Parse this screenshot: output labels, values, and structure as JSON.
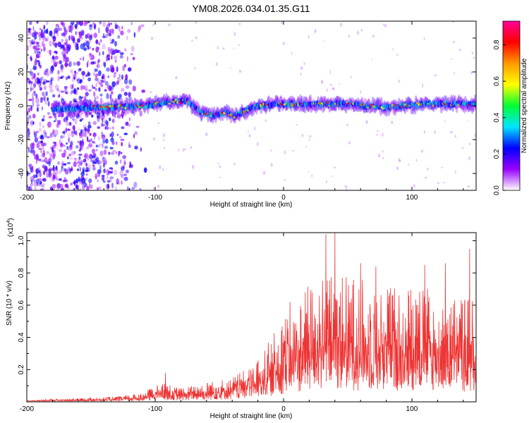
{
  "title": "YM08.2026.034.01.35.G11",
  "spectrogram": {
    "type": "heatmap",
    "xlabel": "Height of straight line (km)",
    "ylabel": "Frequency (Hz)",
    "xlim": [
      -200,
      150
    ],
    "ylim": [
      -50,
      50
    ],
    "xticks": [
      -200,
      -100,
      0,
      100
    ],
    "yticks": [
      -40,
      -20,
      0,
      20,
      40
    ],
    "colorbar": {
      "label": "Normalized spectral amplitude",
      "range": [
        0,
        0.93
      ],
      "ticks": [
        0.0,
        0.2,
        0.4,
        0.6,
        0.8
      ],
      "colors": [
        "#ffffff",
        "#9900ff",
        "#0000ff",
        "#00e5ff",
        "#00ff33",
        "#ffff00",
        "#ff9900",
        "#ff0000",
        "#ff0099"
      ]
    },
    "ridge": [
      {
        "x": -180,
        "y": -2
      },
      {
        "x": -140,
        "y": -1
      },
      {
        "x": -110,
        "y": 0
      },
      {
        "x": -90,
        "y": 2
      },
      {
        "x": -75,
        "y": 3
      },
      {
        "x": -65,
        "y": -4
      },
      {
        "x": -55,
        "y": -6
      },
      {
        "x": -45,
        "y": -4
      },
      {
        "x": -38,
        "y": -6
      },
      {
        "x": -30,
        "y": -3
      },
      {
        "x": -20,
        "y": 0
      },
      {
        "x": -5,
        "y": 1
      },
      {
        "x": 20,
        "y": 1
      },
      {
        "x": 50,
        "y": 1
      },
      {
        "x": 80,
        "y": -1
      },
      {
        "x": 110,
        "y": 1
      },
      {
        "x": 150,
        "y": 1
      }
    ]
  },
  "snr": {
    "type": "line",
    "xlabel": "Height of straight line (km)",
    "ylabel": "SNR (10 * v/v)",
    "scale_label": "(x10",
    "scale_exp": "4",
    "scale_close": ")",
    "xlim": [
      -200,
      150
    ],
    "ylim": [
      0,
      1.05
    ],
    "xticks": [
      -200,
      -100,
      0,
      100
    ],
    "yticks": [
      0.2,
      0.4,
      0.6,
      0.8,
      1.0
    ],
    "color": "#ee3333",
    "envelope": [
      {
        "x": -200,
        "y": 0.01
      },
      {
        "x": -160,
        "y": 0.02
      },
      {
        "x": -130,
        "y": 0.03
      },
      {
        "x": -110,
        "y": 0.05
      },
      {
        "x": -95,
        "y": 0.11
      },
      {
        "x": -80,
        "y": 0.08
      },
      {
        "x": -60,
        "y": 0.11
      },
      {
        "x": -40,
        "y": 0.14
      },
      {
        "x": -25,
        "y": 0.2
      },
      {
        "x": -15,
        "y": 0.3
      },
      {
        "x": 0,
        "y": 0.48
      },
      {
        "x": 20,
        "y": 0.66
      },
      {
        "x": 40,
        "y": 0.74
      },
      {
        "x": 60,
        "y": 0.7
      },
      {
        "x": 80,
        "y": 0.65
      },
      {
        "x": 100,
        "y": 0.68
      },
      {
        "x": 120,
        "y": 0.62
      },
      {
        "x": 150,
        "y": 0.6
      }
    ],
    "peaks": [
      {
        "x": -92,
        "y": 0.18
      },
      {
        "x": 5,
        "y": 0.62
      },
      {
        "x": 33,
        "y": 1.04
      },
      {
        "x": 40,
        "y": 1.05
      },
      {
        "x": 60,
        "y": 0.86
      },
      {
        "x": 72,
        "y": 0.84
      },
      {
        "x": 110,
        "y": 0.85
      },
      {
        "x": 126,
        "y": 0.86
      },
      {
        "x": 145,
        "y": 0.95
      }
    ]
  }
}
